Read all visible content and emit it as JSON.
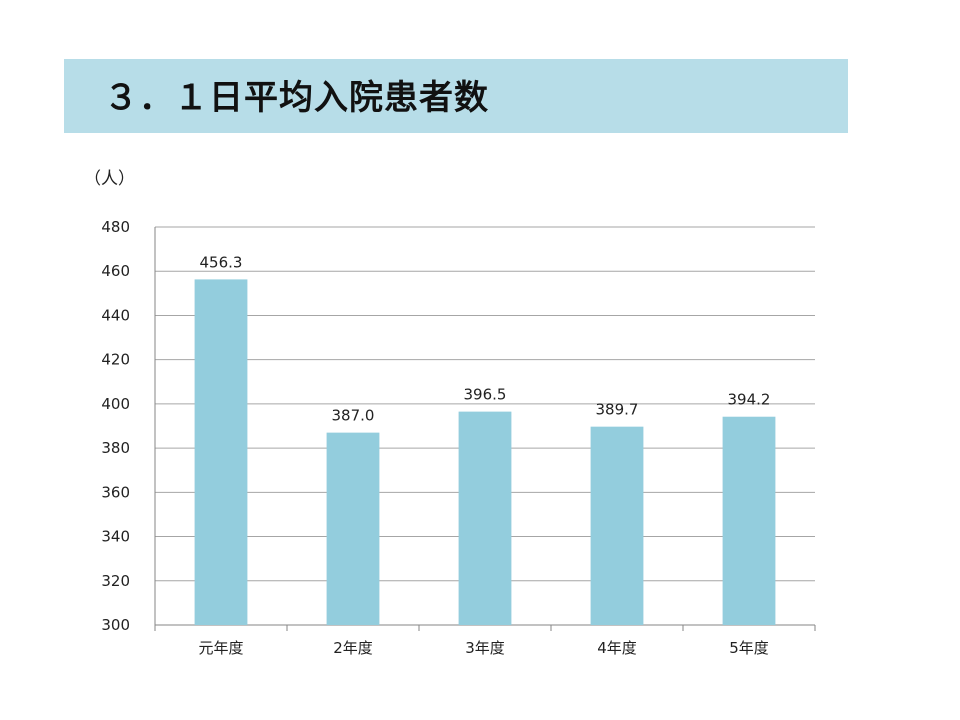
{
  "title": "３．１日平均入院患者数",
  "colors": {
    "title_band": "#b7dde8",
    "bar": "#93cddd",
    "grid": "#a6a6a6",
    "axis": "#868686"
  },
  "chart_data": {
    "type": "bar",
    "ylabel": "（人）",
    "categories": [
      "元年度",
      "2年度",
      "3年度",
      "4年度",
      "5年度"
    ],
    "values": [
      456.3,
      387.0,
      396.5,
      389.7,
      394.2
    ],
    "value_labels": [
      "456.3",
      "387.0",
      "396.5",
      "389.7",
      "394.2"
    ],
    "ylim": [
      300,
      480
    ],
    "yticks": [
      300,
      320,
      340,
      360,
      380,
      400,
      420,
      440,
      460,
      480
    ],
    "grid": true,
    "legend": "none"
  }
}
